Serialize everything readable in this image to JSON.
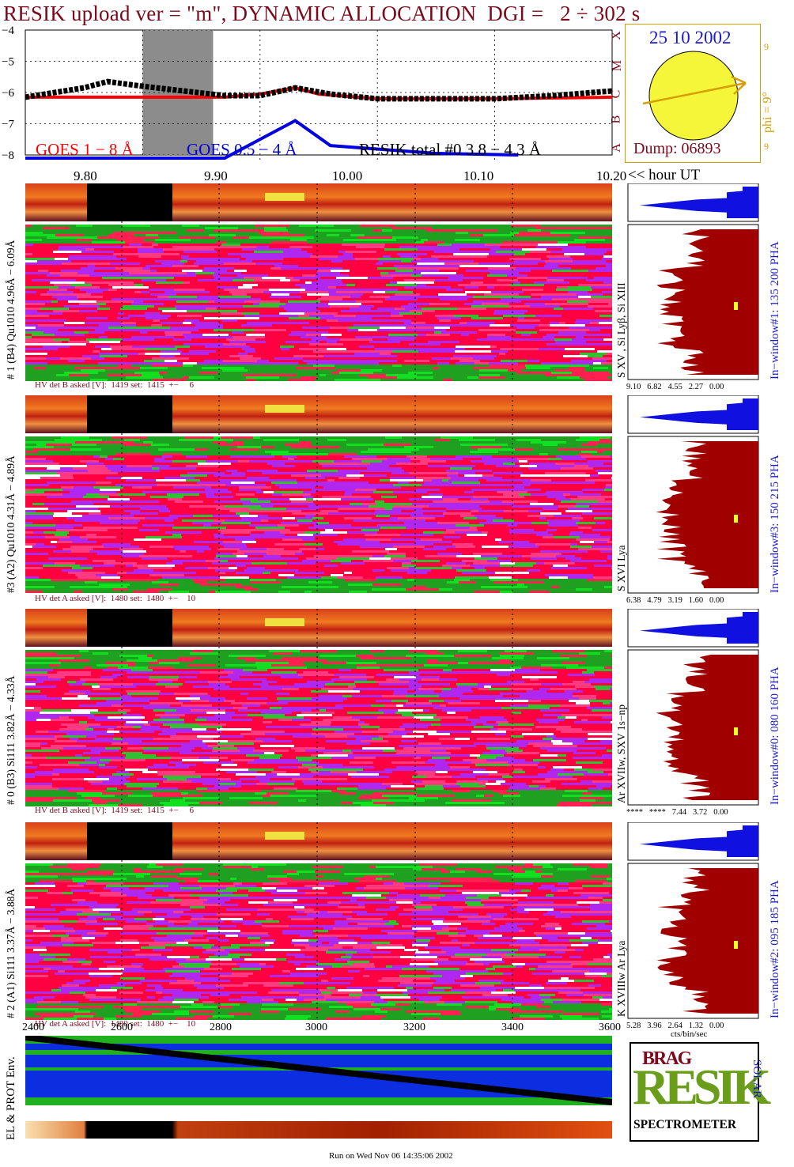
{
  "title": "RESIK upload ver = \"m\", DYNAMIC ALLOCATION  DGI =   2 ÷ 302 s",
  "top_box": {
    "date": "25 10 2002",
    "dump": "Dump: 06893",
    "phi_label": "phi =  9°",
    "phi_nine_a": "9",
    "phi_nine_b": "9",
    "goes_classes": [
      "A",
      "B",
      "C",
      "M",
      "X"
    ],
    "colors": {
      "sun": "#f5f53a",
      "arrow": "#d4a000",
      "text": "#1a1acc",
      "dump": "#7a0a1c"
    }
  },
  "hour_axis": {
    "ticks": [
      "9.80",
      "9.90",
      "10.00",
      "10.10",
      "10.20"
    ],
    "unit_label": "<< hour UT"
  },
  "channel_axis": {
    "ticks": [
      "2400",
      "2600",
      "2800",
      "3000",
      "3200",
      "3400",
      "3600"
    ]
  },
  "panels": [
    {
      "label": "# 1 (B4) Qu1010 4.96Å  − 6.09Å",
      "window": "In−window#1:  135 200 PHA",
      "line": "S XV , Si Lyβ, Si XIII",
      "hv": "HV det B asked [V]:  1419 set:  1415  +−     6",
      "scale": [
        "9.10",
        "6.82",
        "4.55",
        "2.27",
        "0.00"
      ]
    },
    {
      "label": "#3 (A2) Qu1010  4.31Å  − 4.89Å",
      "window": "In−window#3:  150 215 PHA",
      "line": "S XVI Lya",
      "hv": "HV det A asked [V]:  1480 set:  1480  +−    10",
      "scale": [
        "6.38",
        "4.79",
        "3.19",
        "1.60",
        "0.00"
      ]
    },
    {
      "label": "# 0 (B3) Si111  3.82Å  − 4.33Å",
      "window": "In−window#0:  080 160 PHA",
      "line": "Ar XVIIw,  SXV 1s−np",
      "hv": "HV det B asked [V]:  1419 set:  1415  +−     6",
      "scale": [
        "****",
        "****",
        "7.44",
        "3.72",
        "0.00"
      ]
    },
    {
      "label": "# 2 (A1) Si111  3.37Å − 3.88Å",
      "window": "In−window#2:  095 185 PHA",
      "line": "K XVIIIw  Ar Lya",
      "hv": "HV det A asked [V]:  1480 set:  1480  +−    10",
      "scale": [
        "5.28",
        "3.96",
        "2.64",
        "1.32",
        "0.00"
      ]
    }
  ],
  "bottom_unit": "cts/bin/sec",
  "env_label": "EL & PROT Env.",
  "logo": {
    "main": "RESIK",
    "sub": "SPECTROMETER",
    "top": "BRAG",
    "side": "SOLAR"
  },
  "footer": "Run on Wed Nov 06 14:35:06 2002",
  "chart_data": {
    "type": "line",
    "x_unit": "hour UT",
    "xlim": [
      9.7,
      10.2
    ],
    "ylim": [
      -8,
      -4
    ],
    "yticks": [
      -4,
      -5,
      -6,
      -7,
      -8
    ],
    "series": [
      {
        "name": "GOES 1 − 8 Å",
        "color": "#ff0000",
        "x": [
          9.7,
          9.8,
          9.87,
          9.9,
          9.93,
          9.95,
          10.0,
          10.1,
          10.2
        ],
        "y": [
          -6.15,
          -6.15,
          -6.15,
          -6.05,
          -5.85,
          -6.05,
          -6.2,
          -6.2,
          -6.15
        ]
      },
      {
        "name": "GOES 0.5 − 4 Å",
        "color": "#0000e0",
        "x": [
          9.7,
          9.87,
          9.9,
          9.93,
          9.96,
          10.05,
          10.12
        ],
        "y": [
          -8.1,
          -8.1,
          -7.5,
          -6.9,
          -7.7,
          -7.95,
          -8.0
        ]
      },
      {
        "name": "RESIK total #0  3.8 − 4.3 Å",
        "color": "#000000",
        "x": [
          9.7,
          9.75,
          9.77,
          9.8,
          9.87,
          9.9,
          9.93,
          9.96,
          10.0,
          10.1,
          10.15,
          10.2
        ],
        "y": [
          -6.15,
          -5.85,
          -5.65,
          -5.8,
          -6.1,
          -6.1,
          -5.85,
          -6.05,
          -6.2,
          -6.2,
          -6.1,
          -5.95
        ]
      }
    ],
    "gap": [
      9.8,
      9.86
    ]
  }
}
